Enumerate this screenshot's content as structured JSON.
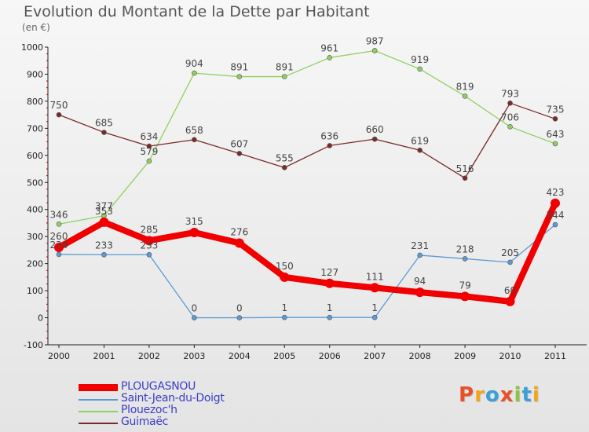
{
  "header": {
    "title": "Evolution du Montant de la Dette par Habitant",
    "unit": "(en €)"
  },
  "brand": {
    "letters": [
      "P",
      "r",
      "o",
      "x",
      "i",
      "t",
      "i"
    ],
    "colors": [
      "#e8502a",
      "#f2a51a",
      "#3aa0d8",
      "#e8502a",
      "#8cc43c",
      "#3aa0d8",
      "#f2a51a"
    ]
  },
  "chart_data": {
    "type": "line",
    "x": [
      "2000",
      "2001",
      "2002",
      "2003",
      "2004",
      "2005",
      "2006",
      "2007",
      "2008",
      "2009",
      "2010",
      "2011"
    ],
    "ylim": [
      -100,
      1000
    ],
    "yticks": [
      "-100",
      "0",
      "100",
      "200",
      "300",
      "400",
      "500",
      "600",
      "700",
      "800",
      "900",
      "1000"
    ],
    "grid": false,
    "legend_placement": "bottom-left",
    "series": [
      {
        "name": "PLOUGASNOU",
        "color": "#f00000",
        "values": [
          260,
          353,
          285,
          315,
          276,
          150,
          127,
          111,
          94,
          79,
          60,
          423
        ],
        "labels": [
          "260",
          "353",
          "285",
          "315",
          "276",
          "150",
          "127",
          "111",
          "94",
          "79",
          "60",
          "423"
        ]
      },
      {
        "name": "Saint-Jean-du-Doigt",
        "color": "#5b9bd5",
        "values": [
          234,
          233,
          233,
          0,
          0,
          1,
          1,
          1,
          231,
          218,
          205,
          344
        ],
        "labels": [
          "234",
          "233",
          "233",
          "0",
          "0",
          "1",
          "1",
          "1",
          "231",
          "218",
          "205",
          "344"
        ]
      },
      {
        "name": "Plouezoc'h",
        "color": "#90d060",
        "values": [
          346,
          377,
          579,
          904,
          891,
          891,
          961,
          987,
          919,
          819,
          706,
          643
        ],
        "labels": [
          "346",
          "377",
          "579",
          "904",
          "891",
          "891",
          "961",
          "987",
          "919",
          "819",
          "706",
          "643"
        ]
      },
      {
        "name": "Guimaëc",
        "color": "#7b2a2a",
        "values": [
          750,
          685,
          634,
          658,
          607,
          555,
          636,
          660,
          619,
          516,
          793,
          735
        ],
        "labels": [
          "750",
          "685",
          "634",
          "658",
          "607",
          "555",
          "636",
          "660",
          "619",
          "516",
          "793",
          "735"
        ]
      }
    ]
  }
}
